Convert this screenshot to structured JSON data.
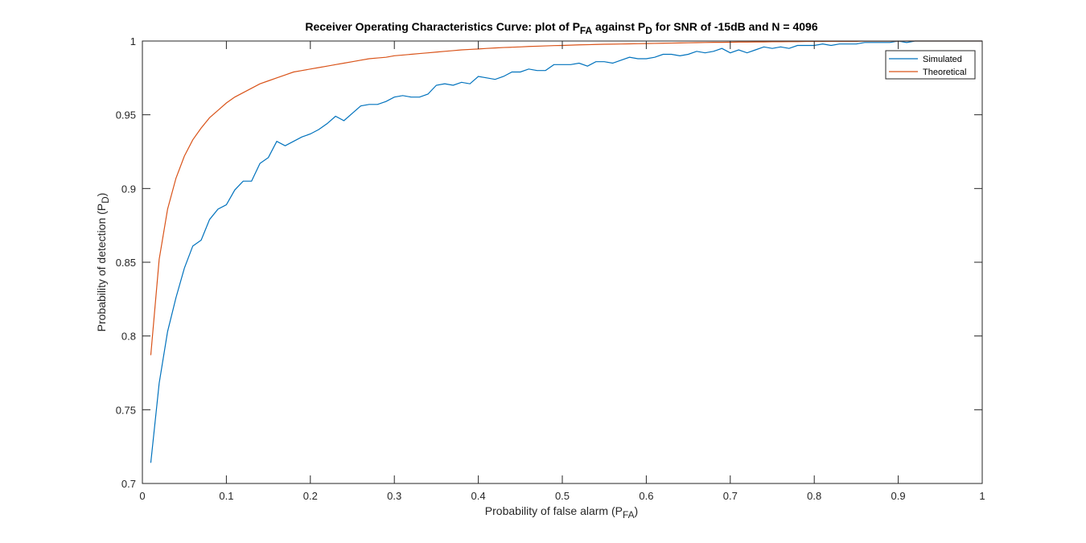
{
  "chart_data": {
    "type": "line",
    "title": {
      "parts": [
        {
          "text": "Receiver Operating Characteristics Curve: plot of P",
          "sub": false
        },
        {
          "text": "FA",
          "sub": true
        },
        {
          "text": " against P",
          "sub": false
        },
        {
          "text": "D",
          "sub": true
        },
        {
          "text": " for SNR of -15dB and N = 4096",
          "sub": false
        }
      ]
    },
    "xlabel": {
      "parts": [
        {
          "text": "Probability of false alarm (P",
          "sub": false
        },
        {
          "text": "FA",
          "sub": true
        },
        {
          "text": ")",
          "sub": false
        }
      ]
    },
    "ylabel": {
      "parts": [
        {
          "text": "Probability of detection (P",
          "sub": false
        },
        {
          "text": "D",
          "sub": true
        },
        {
          "text": ")",
          "sub": false
        }
      ]
    },
    "xlim": [
      0,
      1
    ],
    "ylim": [
      0.7,
      1
    ],
    "xticks": [
      0,
      0.1,
      0.2,
      0.3,
      0.4,
      0.5,
      0.6,
      0.7,
      0.8,
      0.9,
      1
    ],
    "xtick_labels": [
      "0",
      "0.1",
      "0.2",
      "0.3",
      "0.4",
      "0.5",
      "0.6",
      "0.7",
      "0.8",
      "0.9",
      "1"
    ],
    "yticks": [
      0.7,
      0.75,
      0.8,
      0.85,
      0.9,
      0.95,
      1
    ],
    "ytick_labels": [
      "0.7",
      "0.75",
      "0.8",
      "0.85",
      "0.9",
      "0.95",
      "1"
    ],
    "grid": false,
    "legend_position": "top-right",
    "x": [
      0.01,
      0.02,
      0.03,
      0.04,
      0.05,
      0.06,
      0.07,
      0.08,
      0.09,
      0.1,
      0.11,
      0.12,
      0.13,
      0.14,
      0.15,
      0.16,
      0.17,
      0.18,
      0.19,
      0.2,
      0.21,
      0.22,
      0.23,
      0.24,
      0.25,
      0.26,
      0.27,
      0.28,
      0.29,
      0.3,
      0.31,
      0.32,
      0.33,
      0.34,
      0.35,
      0.36,
      0.37,
      0.38,
      0.39,
      0.4,
      0.41,
      0.42,
      0.43,
      0.44,
      0.45,
      0.46,
      0.47,
      0.48,
      0.49,
      0.5,
      0.51,
      0.52,
      0.53,
      0.54,
      0.55,
      0.56,
      0.57,
      0.58,
      0.59,
      0.6,
      0.61,
      0.62,
      0.63,
      0.64,
      0.65,
      0.66,
      0.67,
      0.68,
      0.69,
      0.7,
      0.71,
      0.72,
      0.73,
      0.74,
      0.75,
      0.76,
      0.77,
      0.78,
      0.79,
      0.8,
      0.81,
      0.82,
      0.83,
      0.84,
      0.85,
      0.86,
      0.87,
      0.88,
      0.89,
      0.9,
      0.91,
      0.92,
      0.93,
      0.94,
      0.95,
      0.96,
      0.97,
      0.98,
      0.99,
      1.0
    ],
    "series": [
      {
        "name": "Simulated",
        "color": "#0072BD",
        "values": [
          0.714,
          0.768,
          0.803,
          0.826,
          0.846,
          0.861,
          0.865,
          0.879,
          0.886,
          0.889,
          0.899,
          0.905,
          0.905,
          0.917,
          0.921,
          0.932,
          0.929,
          0.932,
          0.935,
          0.937,
          0.94,
          0.944,
          0.949,
          0.946,
          0.951,
          0.956,
          0.957,
          0.957,
          0.959,
          0.962,
          0.963,
          0.962,
          0.962,
          0.964,
          0.97,
          0.971,
          0.97,
          0.972,
          0.971,
          0.976,
          0.975,
          0.974,
          0.976,
          0.979,
          0.979,
          0.981,
          0.98,
          0.98,
          0.984,
          0.984,
          0.984,
          0.985,
          0.983,
          0.986,
          0.986,
          0.985,
          0.987,
          0.989,
          0.988,
          0.988,
          0.989,
          0.991,
          0.991,
          0.99,
          0.991,
          0.993,
          0.992,
          0.993,
          0.995,
          0.992,
          0.994,
          0.992,
          0.994,
          0.996,
          0.995,
          0.996,
          0.995,
          0.997,
          0.997,
          0.997,
          0.998,
          0.997,
          0.998,
          0.998,
          0.998,
          0.999,
          0.999,
          0.999,
          0.999,
          1.0,
          0.999,
          1.0,
          1.0,
          1.0,
          1.0,
          1.0,
          1.0,
          1.0,
          1.0,
          1.0
        ]
      },
      {
        "name": "Theoretical",
        "color": "#D95319",
        "values": [
          0.787,
          0.852,
          0.886,
          0.907,
          0.922,
          0.933,
          0.941,
          0.948,
          0.953,
          0.958,
          0.962,
          0.965,
          0.968,
          0.971,
          0.973,
          0.975,
          0.977,
          0.979,
          0.98,
          0.981,
          0.982,
          0.983,
          0.984,
          0.985,
          0.986,
          0.987,
          0.988,
          0.9885,
          0.989,
          0.99,
          0.9905,
          0.991,
          0.9915,
          0.992,
          0.9925,
          0.993,
          0.9935,
          0.994,
          0.9943,
          0.9946,
          0.995,
          0.9953,
          0.9956,
          0.9958,
          0.996,
          0.9963,
          0.9965,
          0.9967,
          0.9969,
          0.997,
          0.9972,
          0.9974,
          0.9975,
          0.9977,
          0.9978,
          0.9979,
          0.998,
          0.9981,
          0.9982,
          0.9983,
          0.9984,
          0.9985,
          0.9986,
          0.9987,
          0.9988,
          0.9989,
          0.999,
          0.9991,
          0.9991,
          0.9992,
          0.9993,
          0.9993,
          0.9994,
          0.9994,
          0.9995,
          0.9995,
          0.9996,
          0.9996,
          0.9997,
          0.9997,
          0.9997,
          0.9998,
          0.9998,
          0.9998,
          0.9998,
          0.9999,
          0.9999,
          0.9999,
          0.9999,
          0.9999,
          1.0,
          1.0,
          1.0,
          1.0,
          1.0,
          1.0,
          1.0,
          1.0,
          1.0,
          1.0
        ]
      }
    ]
  }
}
